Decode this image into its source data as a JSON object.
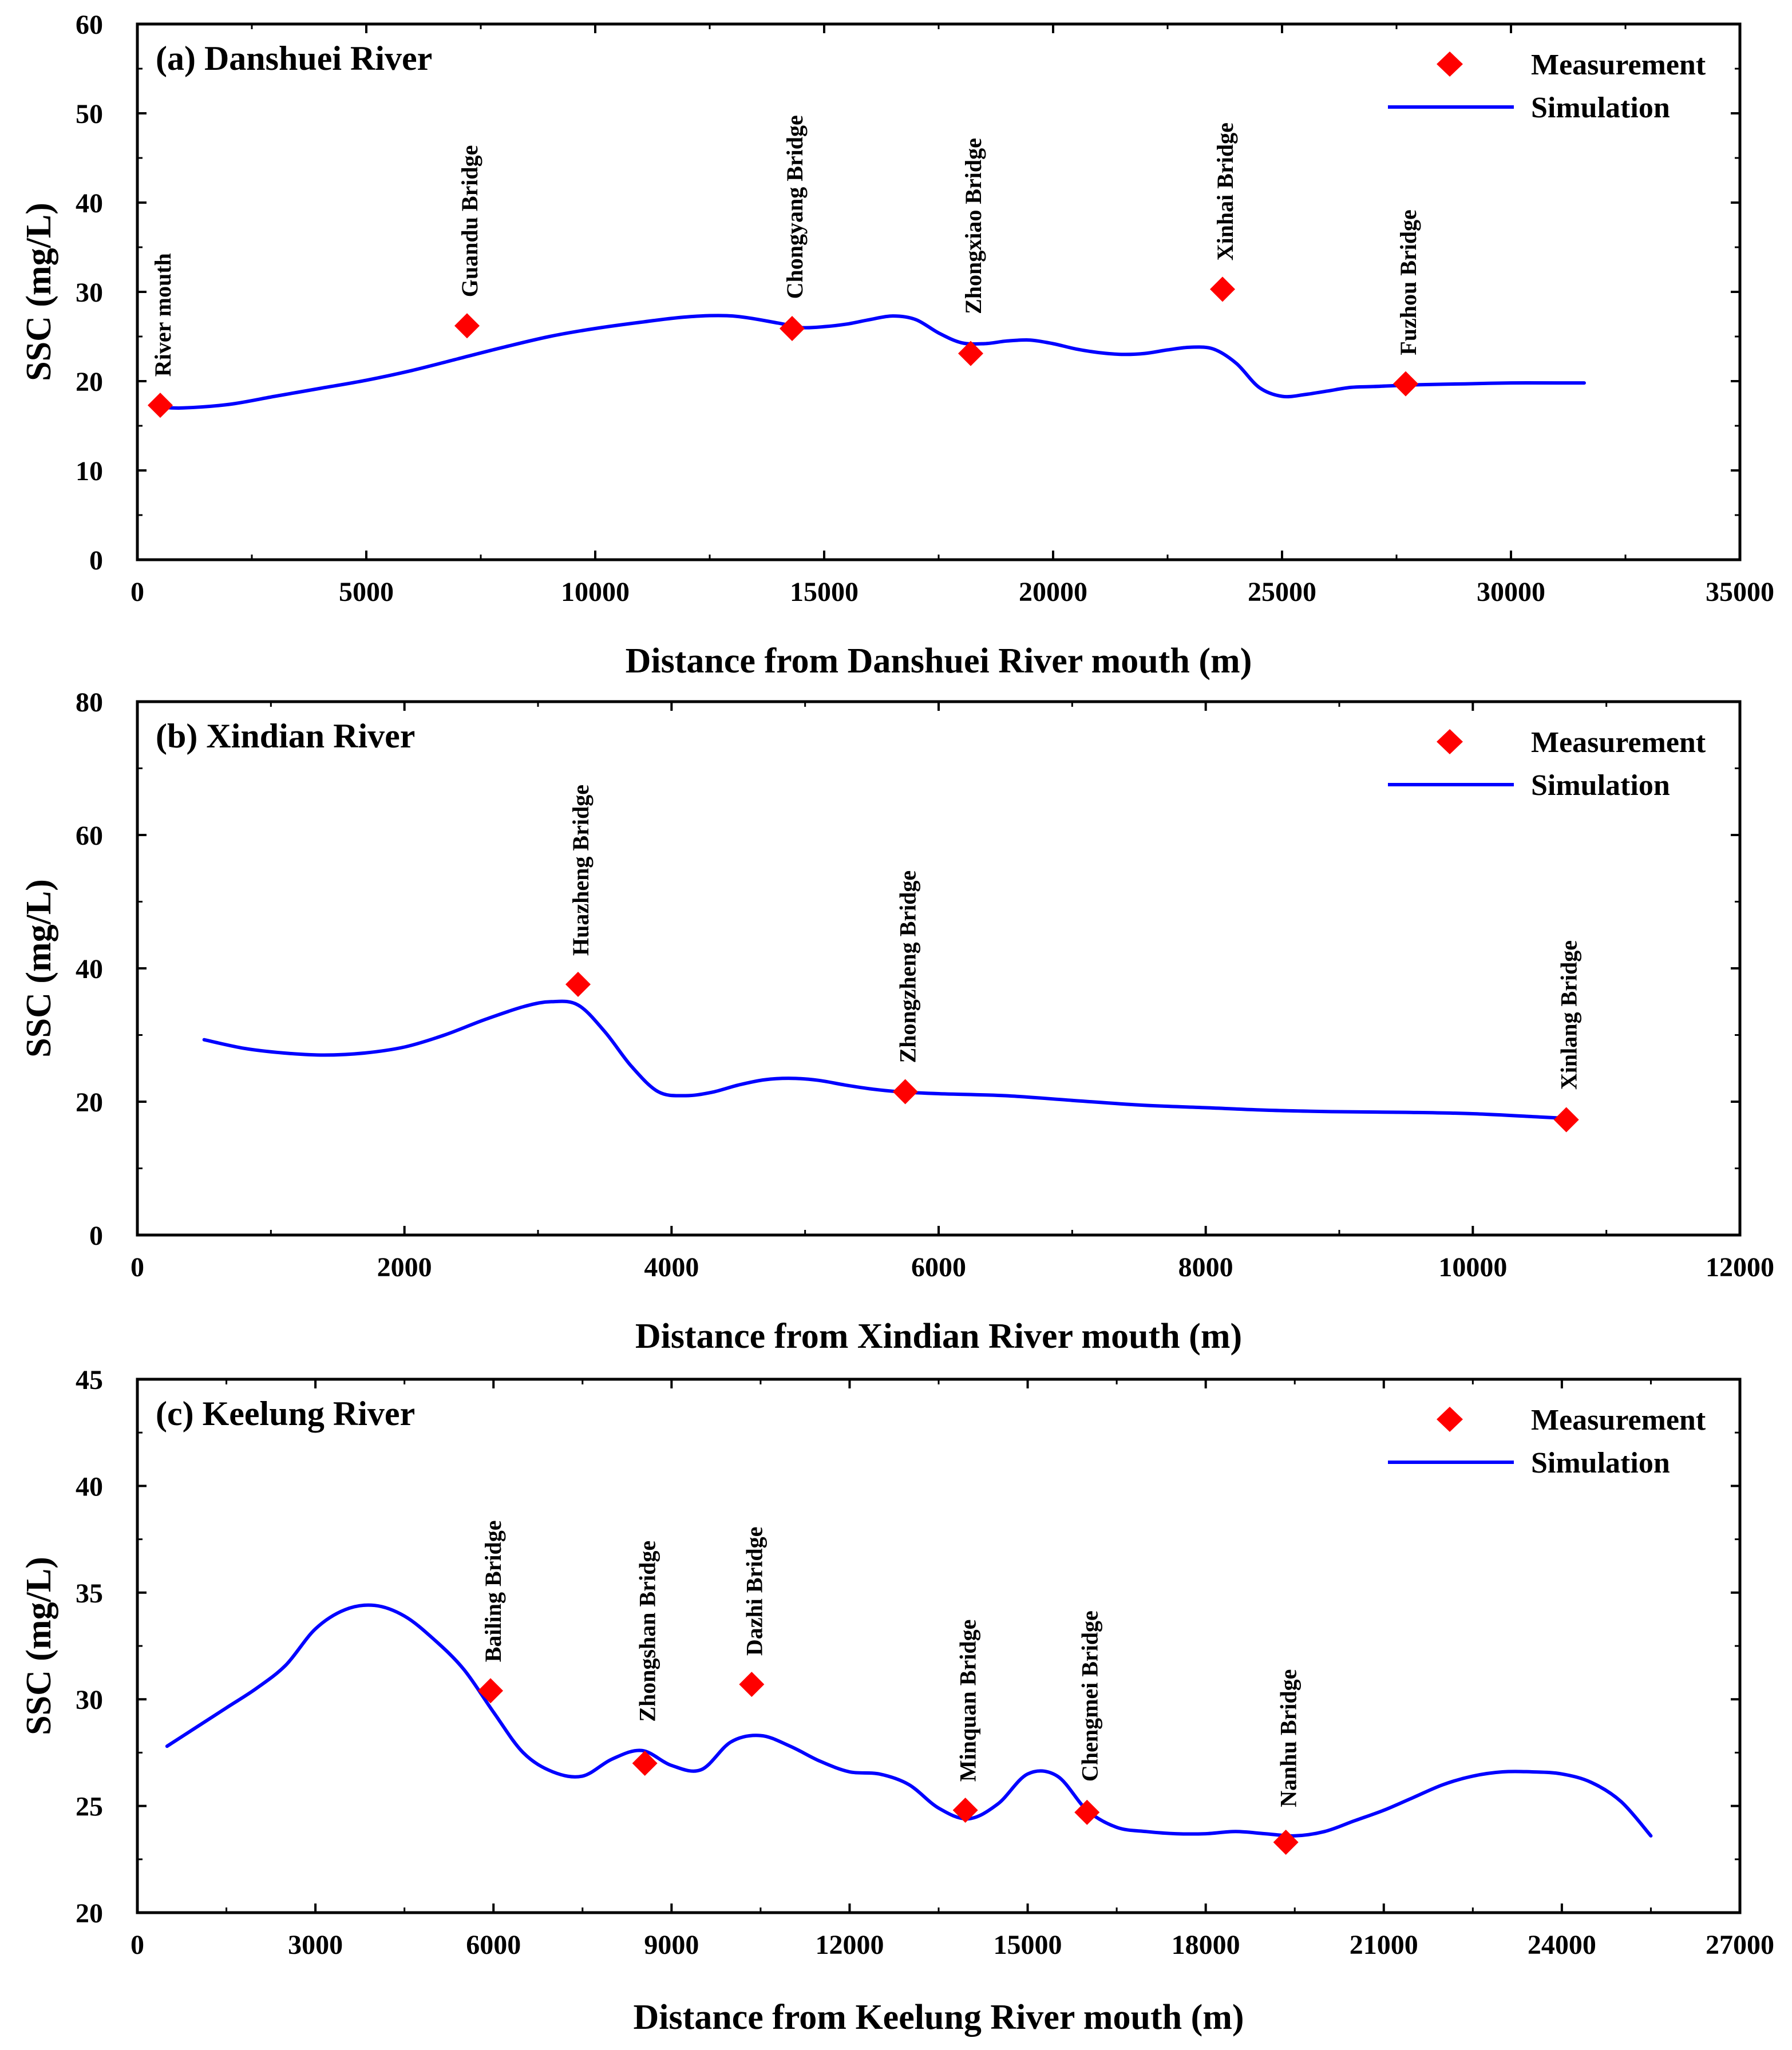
{
  "colors": {
    "measurement": "#ff0000",
    "simulation": "#0000ff",
    "axes": "#000000"
  },
  "legend": {
    "measurement": "Measurement",
    "simulation": "Simulation"
  },
  "chart_data": [
    {
      "type": "line",
      "title": "(a) Danshuei River",
      "xlabel": "Distance from Danshuei River mouth (m)",
      "ylabel": "SSC (mg/L)",
      "xlim": [
        0,
        35000
      ],
      "ylim": [
        0,
        60
      ],
      "xticks": [
        0,
        5000,
        10000,
        15000,
        20000,
        25000,
        30000,
        35000
      ],
      "yticks": [
        0,
        10,
        20,
        30,
        40,
        50,
        60
      ],
      "legend_position": "top-right",
      "series": [
        {
          "name": "Simulation",
          "x": [
            500,
            1000,
            2000,
            3000,
            4000,
            5000,
            6000,
            7000,
            8000,
            9000,
            10000,
            11000,
            12000,
            13000,
            14000,
            14500,
            15000,
            15500,
            16000,
            16500,
            17000,
            17500,
            18000,
            18500,
            19000,
            19500,
            20000,
            20500,
            21000,
            21500,
            22000,
            22500,
            23000,
            23500,
            24000,
            24500,
            25000,
            25500,
            26000,
            26500,
            27000,
            28000,
            29000,
            30000,
            31000,
            31600
          ],
          "y": [
            17.1,
            17.0,
            17.4,
            18.3,
            19.2,
            20.1,
            21.2,
            22.5,
            23.8,
            25.0,
            25.9,
            26.6,
            27.2,
            27.3,
            26.5,
            26.0,
            26.1,
            26.4,
            26.9,
            27.3,
            26.9,
            25.4,
            24.3,
            24.2,
            24.5,
            24.6,
            24.2,
            23.6,
            23.2,
            23.0,
            23.1,
            23.5,
            23.8,
            23.6,
            22.0,
            19.3,
            18.3,
            18.5,
            18.9,
            19.3,
            19.4,
            19.6,
            19.7,
            19.8,
            19.8,
            19.8
          ]
        },
        {
          "name": "Measurement",
          "points": [
            {
              "x": 500,
              "y": 17.3,
              "label": "River mouth"
            },
            {
              "x": 7200,
              "y": 26.2,
              "label": "Guandu Bridge"
            },
            {
              "x": 14300,
              "y": 25.9,
              "label": "Chongyang Bridge"
            },
            {
              "x": 18200,
              "y": 23.1,
              "label": "Zhongxiao Bridge"
            },
            {
              "x": 23700,
              "y": 30.3,
              "label": "Xinhai Bridge"
            },
            {
              "x": 27700,
              "y": 19.7,
              "label": "Fuzhou Bridge"
            }
          ]
        }
      ]
    },
    {
      "type": "line",
      "title": "(b) Xindian River",
      "xlabel": "Distance from Xindian River mouth (m)",
      "ylabel": "SSC (mg/L)",
      "xlim": [
        0,
        12000
      ],
      "ylim": [
        0,
        80
      ],
      "xticks": [
        0,
        2000,
        4000,
        6000,
        8000,
        10000,
        12000
      ],
      "yticks": [
        0,
        20,
        40,
        60,
        80
      ],
      "legend_position": "top-right",
      "series": [
        {
          "name": "Simulation",
          "x": [
            500,
            800,
            1100,
            1400,
            1700,
            2000,
            2300,
            2600,
            2900,
            3100,
            3300,
            3500,
            3700,
            3900,
            4100,
            4300,
            4500,
            4700,
            4900,
            5100,
            5300,
            5500,
            5700,
            6000,
            6500,
            7000,
            7500,
            8000,
            8500,
            9000,
            9500,
            10000,
            10500,
            10700
          ],
          "y": [
            29.3,
            28.0,
            27.3,
            27.0,
            27.3,
            28.2,
            30.0,
            32.3,
            34.3,
            35.0,
            34.5,
            30.5,
            25.3,
            21.5,
            20.9,
            21.4,
            22.5,
            23.3,
            23.5,
            23.2,
            22.5,
            21.9,
            21.5,
            21.2,
            20.9,
            20.2,
            19.5,
            19.1,
            18.7,
            18.5,
            18.4,
            18.2,
            17.7,
            17.5
          ]
        },
        {
          "name": "Measurement",
          "points": [
            {
              "x": 3300,
              "y": 37.6,
              "label": "Huazheng Bridge"
            },
            {
              "x": 5750,
              "y": 21.5,
              "label": "Zhongzheng Bridge"
            },
            {
              "x": 10700,
              "y": 17.3,
              "label": "Xinlang Bridge"
            }
          ]
        }
      ]
    },
    {
      "type": "line",
      "title": "(c) Keelung River",
      "xlabel": "Distance from Keelung River mouth (m)",
      "ylabel": "SSC (mg/L)",
      "xlim": [
        0,
        27000
      ],
      "ylim": [
        20,
        45
      ],
      "xticks": [
        0,
        3000,
        6000,
        9000,
        12000,
        15000,
        18000,
        21000,
        24000,
        27000
      ],
      "yticks": [
        20,
        25,
        30,
        35,
        40,
        45
      ],
      "legend_position": "top-right",
      "series": [
        {
          "name": "Simulation",
          "x": [
            500,
            1000,
            1500,
            2000,
            2500,
            3000,
            3500,
            4000,
            4500,
            5000,
            5500,
            6000,
            6500,
            7000,
            7500,
            8000,
            8500,
            9000,
            9500,
            10000,
            10500,
            11000,
            11500,
            12000,
            12500,
            13000,
            13500,
            14000,
            14500,
            15000,
            15500,
            16000,
            16500,
            17000,
            17500,
            18000,
            18500,
            19000,
            19500,
            20000,
            20500,
            21000,
            21500,
            22000,
            22500,
            23000,
            23500,
            24000,
            24500,
            25000,
            25500
          ],
          "y": [
            27.8,
            28.7,
            29.6,
            30.5,
            31.6,
            33.3,
            34.2,
            34.4,
            33.9,
            32.8,
            31.4,
            29.4,
            27.5,
            26.6,
            26.4,
            27.2,
            27.6,
            26.9,
            26.7,
            28.0,
            28.3,
            27.8,
            27.1,
            26.6,
            26.5,
            26.0,
            24.9,
            24.4,
            25.1,
            26.5,
            26.4,
            24.8,
            24.0,
            23.8,
            23.7,
            23.7,
            23.8,
            23.7,
            23.6,
            23.8,
            24.3,
            24.8,
            25.4,
            26.0,
            26.4,
            26.6,
            26.6,
            26.5,
            26.1,
            25.2,
            23.6
          ]
        },
        {
          "name": "Measurement",
          "points": [
            {
              "x": 5950,
              "y": 30.4,
              "label": "Bailing Bridge"
            },
            {
              "x": 8550,
              "y": 27.0,
              "label": "Zhongshan Bridge"
            },
            {
              "x": 10350,
              "y": 30.7,
              "label": "Dazhi Bridge"
            },
            {
              "x": 13950,
              "y": 24.8,
              "label": "Minquan Bridge"
            },
            {
              "x": 16000,
              "y": 24.7,
              "label": "Chengmei Bridge"
            },
            {
              "x": 19350,
              "y": 23.3,
              "label": "Nanhu Bridge"
            }
          ]
        }
      ]
    }
  ]
}
